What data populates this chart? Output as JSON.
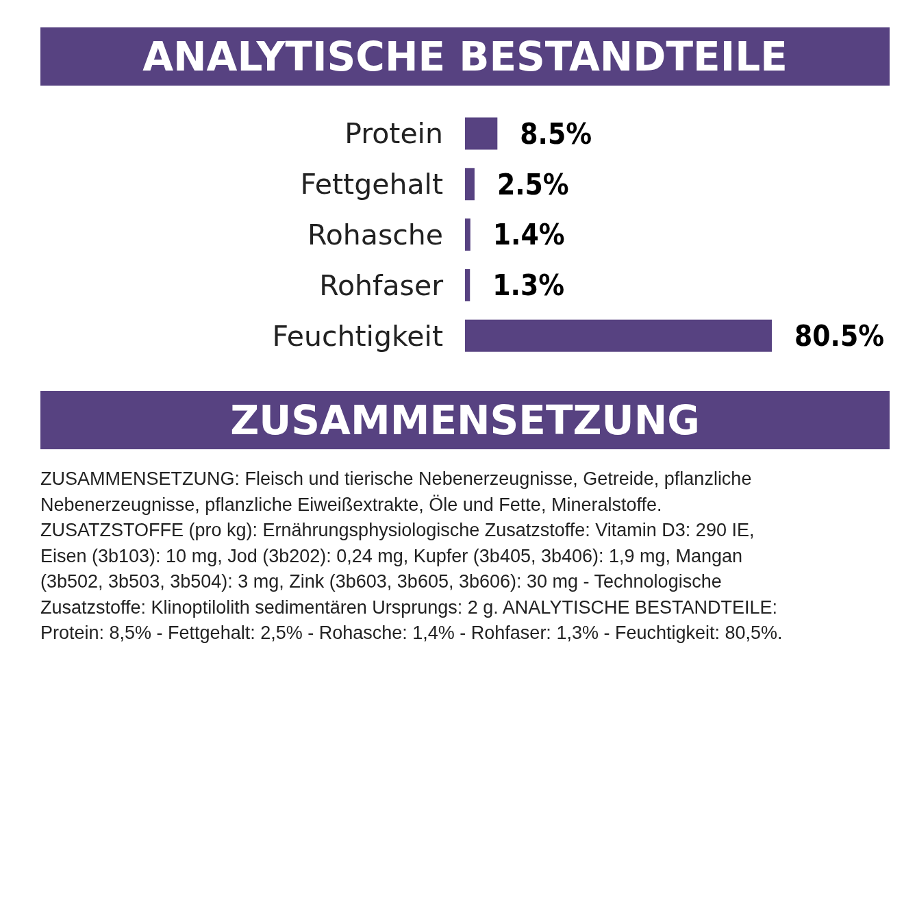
{
  "chart_data": {
    "type": "bar",
    "orientation": "horizontal",
    "title": "ANALYTISCHE BESTANDTEILE",
    "categories": [
      "Protein",
      "Fettgehalt",
      "Rohasche",
      "Rohfaser",
      "Feuchtigkeit"
    ],
    "values": [
      8.5,
      2.5,
      1.4,
      1.3,
      80.5
    ],
    "value_labels": [
      "8.5%",
      "2.5%",
      "1.4%",
      "1.3%",
      "80.5%"
    ],
    "color": "#574281",
    "annotations": [
      "ZUSAMMENSETZUNG",
      "ZUSAMMENSETZUNG: Fleisch und tierische Nebenerzeugnisse, Getreide, pflanzliche\nNebenerzeugnisse, pflanzliche Eiweißextrakte, Öle und Fette, Mineralstoffe.\nZUSATZSTOFFE (pro kg): Ernährungsphysiologische Zusatzstoffe: Vitamin D3: 290 IE,\nEisen (3b103): 10 mg, Jod (3b202): 0,24 mg, Kupfer (3b405, 3b406): 1,9 mg, Mangan\n(3b502, 3b503, 3b504): 3 mg, Zink (3b603, 3b605, 3b606): 30 mg - Technologische\nZusatzstoffe: Klinoptilolith sedimentären Ursprungs: 2 g. ANALYTISCHE BESTANDTEILE:\nProtein: 8,5% - Fettgehalt: 2,5% - Rohasche: 1,4% - Rohfaser: 1,3% - Feuchtigkeit: 80,5%."
    ]
  }
}
